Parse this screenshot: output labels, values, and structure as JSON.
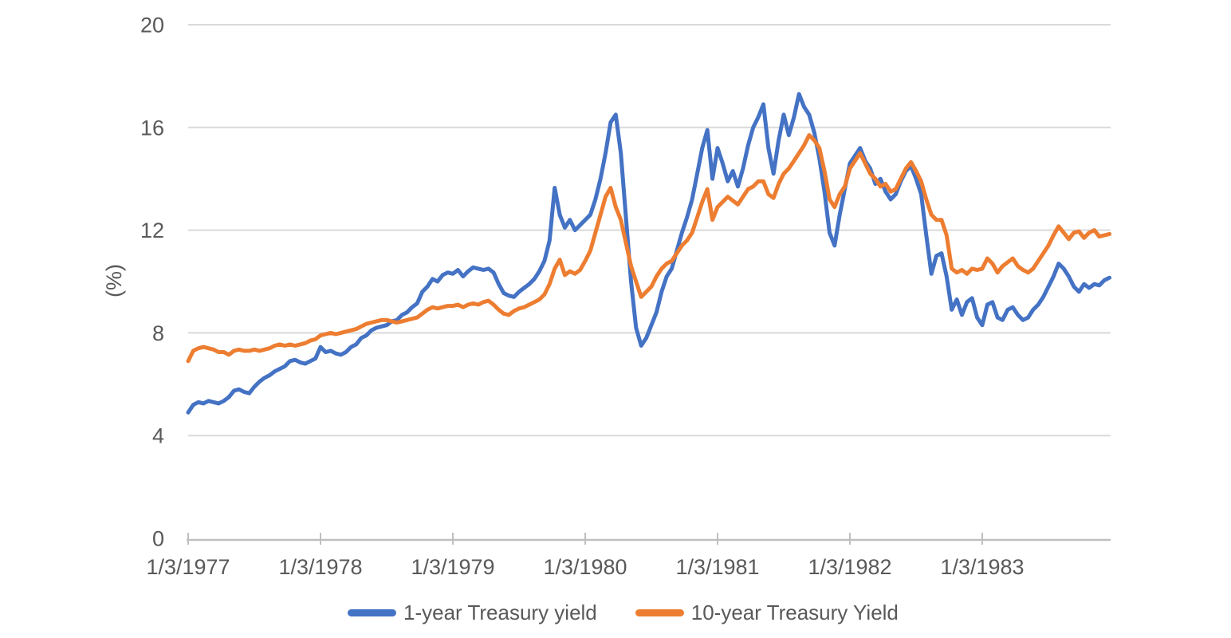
{
  "page": {
    "background": "#FFFFFF"
  },
  "style_colors": {
    "axis_text": "#595959",
    "gridline": "#D9D9D9",
    "axis_line": "#BFBFBF",
    "series_blue": "#4472C4",
    "series_orange": "#ED7D31"
  },
  "chart_data": {
    "type": "line",
    "title": "",
    "xlabel": "",
    "ylabel": "(%)",
    "ylim": [
      0,
      20
    ],
    "y_ticks": [
      0,
      4,
      8,
      12,
      16,
      20
    ],
    "x_tick_labels": [
      "1/3/1977",
      "1/3/1978",
      "1/3/1979",
      "1/3/1980",
      "1/3/1981",
      "1/3/1982",
      "1/3/1983"
    ],
    "x_start_year": 1977.0,
    "x_step_years": 0.0384615,
    "grid": "horizontal",
    "legend_position": "bottom-center",
    "series": [
      {
        "name": "1-year Treasury yield",
        "color": "#4472C4",
        "values": [
          4.9,
          5.2,
          5.3,
          5.25,
          5.35,
          5.3,
          5.25,
          5.35,
          5.5,
          5.75,
          5.8,
          5.7,
          5.65,
          5.9,
          6.1,
          6.25,
          6.35,
          6.5,
          6.6,
          6.7,
          6.9,
          6.95,
          6.85,
          6.8,
          6.9,
          7.0,
          7.45,
          7.25,
          7.3,
          7.2,
          7.15,
          7.25,
          7.45,
          7.55,
          7.8,
          7.9,
          8.1,
          8.2,
          8.25,
          8.3,
          8.45,
          8.5,
          8.7,
          8.8,
          9.0,
          9.15,
          9.6,
          9.8,
          10.1,
          10.0,
          10.25,
          10.35,
          10.3,
          10.45,
          10.2,
          10.4,
          10.55,
          10.5,
          10.45,
          10.5,
          10.35,
          9.9,
          9.55,
          9.45,
          9.4,
          9.6,
          9.75,
          9.9,
          10.1,
          10.4,
          10.8,
          11.6,
          13.65,
          12.6,
          12.1,
          12.4,
          12.0,
          12.2,
          12.4,
          12.6,
          13.2,
          14.0,
          15.0,
          16.2,
          16.5,
          15.0,
          12.5,
          10.0,
          8.2,
          7.5,
          7.8,
          8.3,
          8.8,
          9.6,
          10.2,
          10.5,
          11.2,
          11.9,
          12.5,
          13.2,
          14.2,
          15.2,
          15.9,
          14.0,
          15.2,
          14.6,
          13.9,
          14.3,
          13.7,
          14.4,
          15.3,
          16.0,
          16.4,
          16.9,
          15.2,
          14.2,
          15.5,
          16.5,
          15.7,
          16.4,
          17.3,
          16.8,
          16.5,
          15.8,
          14.8,
          13.5,
          11.9,
          11.4,
          12.6,
          13.6,
          14.6,
          14.9,
          15.2,
          14.7,
          14.4,
          13.8,
          14.0,
          13.5,
          13.2,
          13.4,
          13.9,
          14.3,
          14.5,
          14.0,
          13.4,
          11.8,
          10.3,
          11.0,
          11.1,
          10.2,
          8.9,
          9.3,
          8.7,
          9.2,
          9.35,
          8.6,
          8.3,
          9.1,
          9.2,
          8.6,
          8.5,
          8.9,
          9.0,
          8.7,
          8.5,
          8.6,
          8.9,
          9.1,
          9.4,
          9.8,
          10.2,
          10.7,
          10.5,
          10.2,
          9.8,
          9.6,
          9.9,
          9.75,
          9.9,
          9.85,
          10.05,
          10.15
        ]
      },
      {
        "name": "10-year Treasury Yield",
        "color": "#ED7D31",
        "values": [
          6.9,
          7.3,
          7.4,
          7.45,
          7.4,
          7.35,
          7.25,
          7.25,
          7.15,
          7.3,
          7.35,
          7.3,
          7.3,
          7.35,
          7.3,
          7.35,
          7.4,
          7.5,
          7.55,
          7.5,
          7.55,
          7.5,
          7.55,
          7.6,
          7.7,
          7.75,
          7.9,
          7.95,
          8.0,
          7.95,
          8.0,
          8.05,
          8.1,
          8.15,
          8.25,
          8.35,
          8.4,
          8.45,
          8.5,
          8.5,
          8.45,
          8.4,
          8.45,
          8.5,
          8.55,
          8.6,
          8.75,
          8.9,
          9.0,
          8.95,
          9.0,
          9.05,
          9.05,
          9.1,
          9.0,
          9.1,
          9.15,
          9.1,
          9.2,
          9.25,
          9.1,
          8.9,
          8.75,
          8.7,
          8.85,
          8.95,
          9.0,
          9.1,
          9.2,
          9.3,
          9.5,
          9.9,
          10.5,
          10.85,
          10.25,
          10.4,
          10.3,
          10.45,
          10.8,
          11.2,
          11.9,
          12.6,
          13.3,
          13.65,
          12.9,
          12.4,
          11.5,
          10.6,
          10.0,
          9.4,
          9.6,
          9.8,
          10.2,
          10.5,
          10.7,
          10.8,
          11.1,
          11.4,
          11.6,
          11.9,
          12.5,
          13.1,
          13.6,
          12.4,
          12.9,
          13.1,
          13.3,
          13.15,
          13.0,
          13.3,
          13.6,
          13.7,
          13.9,
          13.9,
          13.4,
          13.25,
          13.8,
          14.2,
          14.4,
          14.7,
          15.0,
          15.3,
          15.7,
          15.5,
          15.2,
          14.3,
          13.2,
          12.9,
          13.4,
          13.7,
          14.4,
          14.7,
          15.0,
          14.6,
          14.2,
          14.0,
          13.7,
          13.8,
          13.5,
          13.6,
          14.0,
          14.4,
          14.65,
          14.3,
          13.9,
          13.2,
          12.6,
          12.4,
          12.4,
          11.8,
          10.5,
          10.35,
          10.45,
          10.3,
          10.5,
          10.45,
          10.5,
          10.9,
          10.7,
          10.35,
          10.6,
          10.75,
          10.9,
          10.6,
          10.45,
          10.35,
          10.5,
          10.8,
          11.1,
          11.4,
          11.8,
          12.15,
          11.9,
          11.65,
          11.9,
          11.95,
          11.7,
          11.9,
          12.0,
          11.75,
          11.8,
          11.85
        ]
      }
    ]
  }
}
